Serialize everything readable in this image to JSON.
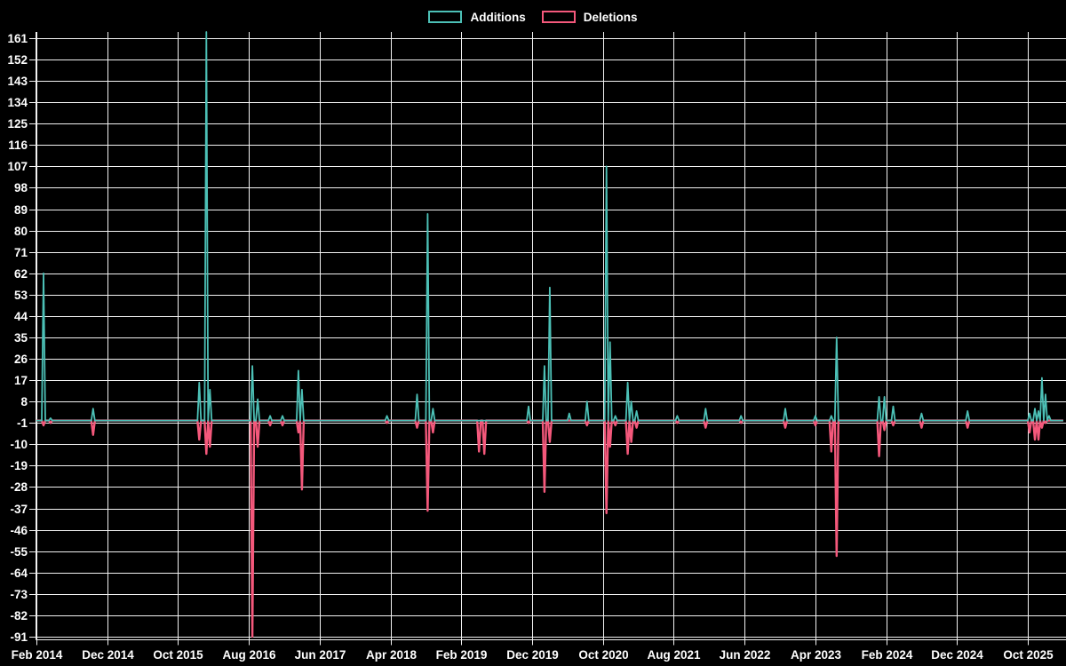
{
  "legend": {
    "items": [
      {
        "label": "Additions"
      },
      {
        "label": "Deletions"
      }
    ]
  },
  "chart_data": {
    "type": "line",
    "description": "Monthly code additions (teal) and deletions (pink) from Feb 2014 to late 2025; flat zero baseline with sparse narrow spikes.",
    "background": "#000000",
    "grid_color": "#f2f2f2",
    "text_color": "#ffffff",
    "legend_position": "top-center",
    "series_meta": [
      {
        "name": "Additions",
        "color": "#4cc0b6"
      },
      {
        "name": "Deletions",
        "color": "#f4587b"
      }
    ],
    "x_axis": {
      "tick_labels": [
        "Feb 2014",
        "Dec 2014",
        "Oct 2015",
        "Aug 2016",
        "Jun 2017",
        "Apr 2018",
        "Feb 2019",
        "Dec 2019",
        "Oct 2020",
        "Aug 2021",
        "Jun 2022",
        "Apr 2023",
        "Feb 2024",
        "Dec 2024",
        "Oct 2025"
      ],
      "months_between_ticks": 10,
      "domain_months": [
        0,
        145
      ]
    },
    "y_axis": {
      "tick_labels": [
        161,
        152,
        143,
        134,
        125,
        116,
        107,
        98,
        89,
        80,
        71,
        62,
        53,
        44,
        35,
        26,
        17,
        8,
        -1,
        -10,
        -19,
        -28,
        -37,
        -46,
        -55,
        -64,
        -73,
        -82,
        -91
      ],
      "tick_step": -9,
      "ylim": [
        -93,
        164
      ]
    },
    "baseline_value": 0,
    "events": [
      {
        "m": 1,
        "date": "Mar 2014",
        "additions": 62,
        "deletions": -2
      },
      {
        "m": 2,
        "date": "Apr 2014",
        "additions": 1,
        "deletions": -1
      },
      {
        "m": 8,
        "date": "Oct 2014",
        "additions": 5,
        "deletions": -6
      },
      {
        "m": 23,
        "date": "Jan 2016",
        "additions": 16,
        "deletions": -8
      },
      {
        "m": 24,
        "date": "Feb 2016",
        "additions": 170,
        "deletions": -14
      },
      {
        "m": 24.6,
        "date": "Mar 2016",
        "additions": 13,
        "deletions": -11
      },
      {
        "m": 30.5,
        "date": "Aug 2016",
        "additions": 23,
        "deletions": -91
      },
      {
        "m": 31.2,
        "date": "Sep 2016",
        "additions": 9,
        "deletions": -11
      },
      {
        "m": 33,
        "date": "Nov 2016",
        "additions": 2,
        "deletions": -2
      },
      {
        "m": 34.8,
        "date": "Jan 2017",
        "additions": 2,
        "deletions": -2
      },
      {
        "m": 37,
        "date": "Mar 2017",
        "additions": 21,
        "deletions": -5
      },
      {
        "m": 37.6,
        "date": "Apr 2017",
        "additions": 13,
        "deletions": -29
      },
      {
        "m": 49.4,
        "date": "Apr 2018",
        "additions": 2,
        "deletions": -1
      },
      {
        "m": 53.8,
        "date": "Aug 2018",
        "additions": 11,
        "deletions": -3
      },
      {
        "m": 55.3,
        "date": "Sep 2018",
        "additions": 87,
        "deletions": -38
      },
      {
        "m": 56,
        "date": "Oct 2018",
        "additions": 5,
        "deletions": -5
      },
      {
        "m": 62.5,
        "date": "Apr 2019",
        "additions": 0,
        "deletions": -13
      },
      {
        "m": 63.2,
        "date": "May 2019",
        "additions": 0,
        "deletions": -14
      },
      {
        "m": 69.6,
        "date": "Dec 2019",
        "additions": 6,
        "deletions": -1
      },
      {
        "m": 71.8,
        "date": "Jan 2020",
        "additions": 23,
        "deletions": -30
      },
      {
        "m": 72.5,
        "date": "Feb 2020",
        "additions": 56,
        "deletions": -9
      },
      {
        "m": 75.3,
        "date": "May 2020",
        "additions": 3,
        "deletions": 0
      },
      {
        "m": 77.7,
        "date": "Jul 2020",
        "additions": 8,
        "deletions": -2
      },
      {
        "m": 80.4,
        "date": "Oct 2020",
        "additions": 107,
        "deletions": -39
      },
      {
        "m": 81.1,
        "date": "Nov 2020",
        "additions": 33,
        "deletions": -11
      },
      {
        "m": 81.7,
        "date": "Dec 2020",
        "additions": 2,
        "deletions": -2
      },
      {
        "m": 83.5,
        "date": "Feb 2021",
        "additions": 16,
        "deletions": -14
      },
      {
        "m": 84.1,
        "date": "Mar 2021",
        "additions": 8,
        "deletions": -9
      },
      {
        "m": 84.8,
        "date": "Apr 2021",
        "additions": 4,
        "deletions": -3
      },
      {
        "m": 90.5,
        "date": "Sep 2021",
        "additions": 2,
        "deletions": -1
      },
      {
        "m": 94.4,
        "date": "Dec 2021",
        "additions": 5,
        "deletions": -3
      },
      {
        "m": 99.4,
        "date": "May 2022",
        "additions": 2,
        "deletions": -1
      },
      {
        "m": 105.7,
        "date": "Dec 2022",
        "additions": 5,
        "deletions": -3
      },
      {
        "m": 110,
        "date": "Apr 2023",
        "additions": 2,
        "deletions": -2
      },
      {
        "m": 112.2,
        "date": "Jun 2023",
        "additions": 2,
        "deletions": -13
      },
      {
        "m": 112.9,
        "date": "Jul 2023",
        "additions": 35,
        "deletions": -57
      },
      {
        "m": 119.1,
        "date": "Jan 2024",
        "additions": 10,
        "deletions": -15
      },
      {
        "m": 119.7,
        "date": "Feb 2024",
        "additions": 10,
        "deletions": -4
      },
      {
        "m": 121,
        "date": "Apr 2024",
        "additions": 6,
        "deletions": -2
      },
      {
        "m": 125.1,
        "date": "Aug 2024",
        "additions": 3,
        "deletions": -3
      },
      {
        "m": 131.5,
        "date": "Mar 2025",
        "additions": 4,
        "deletions": -3
      },
      {
        "m": 140.3,
        "date": "Oct 2025",
        "additions": 3,
        "deletions": -5
      },
      {
        "m": 141,
        "date": "Nov 2025",
        "additions": 5,
        "deletions": -8
      },
      {
        "m": 141.5,
        "date": "Nov 2025",
        "additions": 4,
        "deletions": -8
      },
      {
        "m": 142,
        "date": "Dec 2025",
        "additions": 18,
        "deletions": -3
      },
      {
        "m": 142.5,
        "date": "Dec 2025",
        "additions": 11,
        "deletions": -1
      },
      {
        "m": 143,
        "date": "Jan 2026",
        "additions": 2,
        "deletions": 0
      }
    ]
  }
}
